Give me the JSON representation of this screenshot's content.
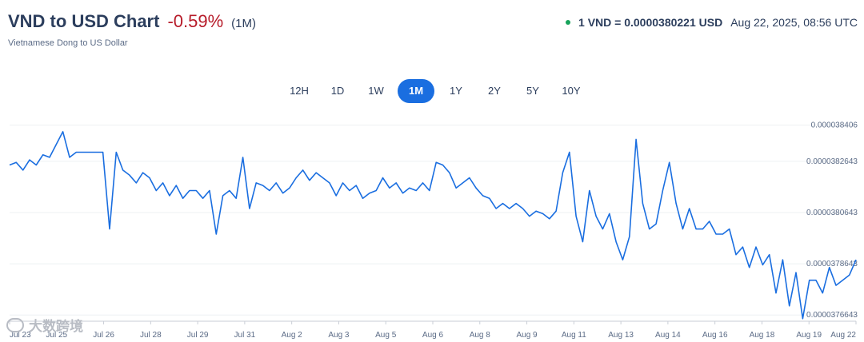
{
  "header": {
    "title": "VND to USD Chart",
    "change": "-0.59%",
    "period": "(1M)",
    "subtitle": "Vietnamese Dong to US Dollar",
    "rate": "1 VND = 0.0000380221 USD",
    "timestamp": "Aug 22, 2025, 08:56 UTC"
  },
  "tabs": [
    "12H",
    "1D",
    "1W",
    "1M",
    "1Y",
    "2Y",
    "5Y",
    "10Y"
  ],
  "active_tab": "1M",
  "watermark": "大数跨境",
  "colors": {
    "line": "#1a6ee0",
    "active_tab": "#1a6ee0",
    "negative": "#b71c2a",
    "live_dot": "#18a35b"
  },
  "chart_data": {
    "type": "line",
    "title": "",
    "xlabel": "",
    "ylabel": "",
    "x_ticks": [
      "Jul 23",
      "Jul 25",
      "Jul 26",
      "Jul 28",
      "Jul 29",
      "Jul 31",
      "Aug 2",
      "Aug 3",
      "Aug 5",
      "Aug 6",
      "Aug 8",
      "Aug 9",
      "Aug 11",
      "Aug 13",
      "Aug 14",
      "Aug 16",
      "Aug 18",
      "Aug 19",
      "Aug 22"
    ],
    "y_ticks": [
      3.8406e-05,
      3.82643e-05,
      3.80643e-05,
      3.78643e-05,
      3.76643e-05
    ],
    "ylim": [
      3.764e-05,
      3.842e-05
    ],
    "grid": true,
    "series": [
      {
        "values": [
          3.825e-05,
          3.826e-05,
          3.823e-05,
          3.827e-05,
          3.825e-05,
          3.829e-05,
          3.828e-05,
          3.833e-05,
          3.838e-05,
          3.828e-05,
          3.83e-05,
          3.83e-05,
          3.83e-05,
          3.83e-05,
          3.83e-05,
          3.8e-05,
          3.83e-05,
          3.823e-05,
          3.821e-05,
          3.818e-05,
          3.822e-05,
          3.82e-05,
          3.815e-05,
          3.818e-05,
          3.813e-05,
          3.817e-05,
          3.812e-05,
          3.815e-05,
          3.815e-05,
          3.812e-05,
          3.815e-05,
          3.798e-05,
          3.813e-05,
          3.815e-05,
          3.812e-05,
          3.828e-05,
          3.808e-05,
          3.818e-05,
          3.817e-05,
          3.815e-05,
          3.818e-05,
          3.814e-05,
          3.816e-05,
          3.82e-05,
          3.823e-05,
          3.819e-05,
          3.822e-05,
          3.82e-05,
          3.818e-05,
          3.813e-05,
          3.818e-05,
          3.815e-05,
          3.817e-05,
          3.812e-05,
          3.814e-05,
          3.815e-05,
          3.82e-05,
          3.816e-05,
          3.818e-05,
          3.814e-05,
          3.816e-05,
          3.815e-05,
          3.818e-05,
          3.815e-05,
          3.826e-05,
          3.825e-05,
          3.822e-05,
          3.816e-05,
          3.818e-05,
          3.82e-05,
          3.816e-05,
          3.813e-05,
          3.812e-05,
          3.808e-05,
          3.81e-05,
          3.808e-05,
          3.81e-05,
          3.808e-05,
          3.805e-05,
          3.807e-05,
          3.806e-05,
          3.804e-05,
          3.807e-05,
          3.822e-05,
          3.83e-05,
          3.805e-05,
          3.795e-05,
          3.815e-05,
          3.805e-05,
          3.8e-05,
          3.806e-05,
          3.795e-05,
          3.788e-05,
          3.797e-05,
          3.835e-05,
          3.81e-05,
          3.8e-05,
          3.802e-05,
          3.815e-05,
          3.826e-05,
          3.81e-05,
          3.8e-05,
          3.808e-05,
          3.8e-05,
          3.8e-05,
          3.803e-05,
          3.798e-05,
          3.798e-05,
          3.8e-05,
          3.79e-05,
          3.793e-05,
          3.785e-05,
          3.793e-05,
          3.786e-05,
          3.79e-05,
          3.775e-05,
          3.788e-05,
          3.77e-05,
          3.783e-05,
          3.765e-05,
          3.78e-05,
          3.78e-05,
          3.775e-05,
          3.785e-05,
          3.778e-05,
          3.78e-05,
          3.782e-05,
          3.788e-05
        ]
      }
    ]
  }
}
